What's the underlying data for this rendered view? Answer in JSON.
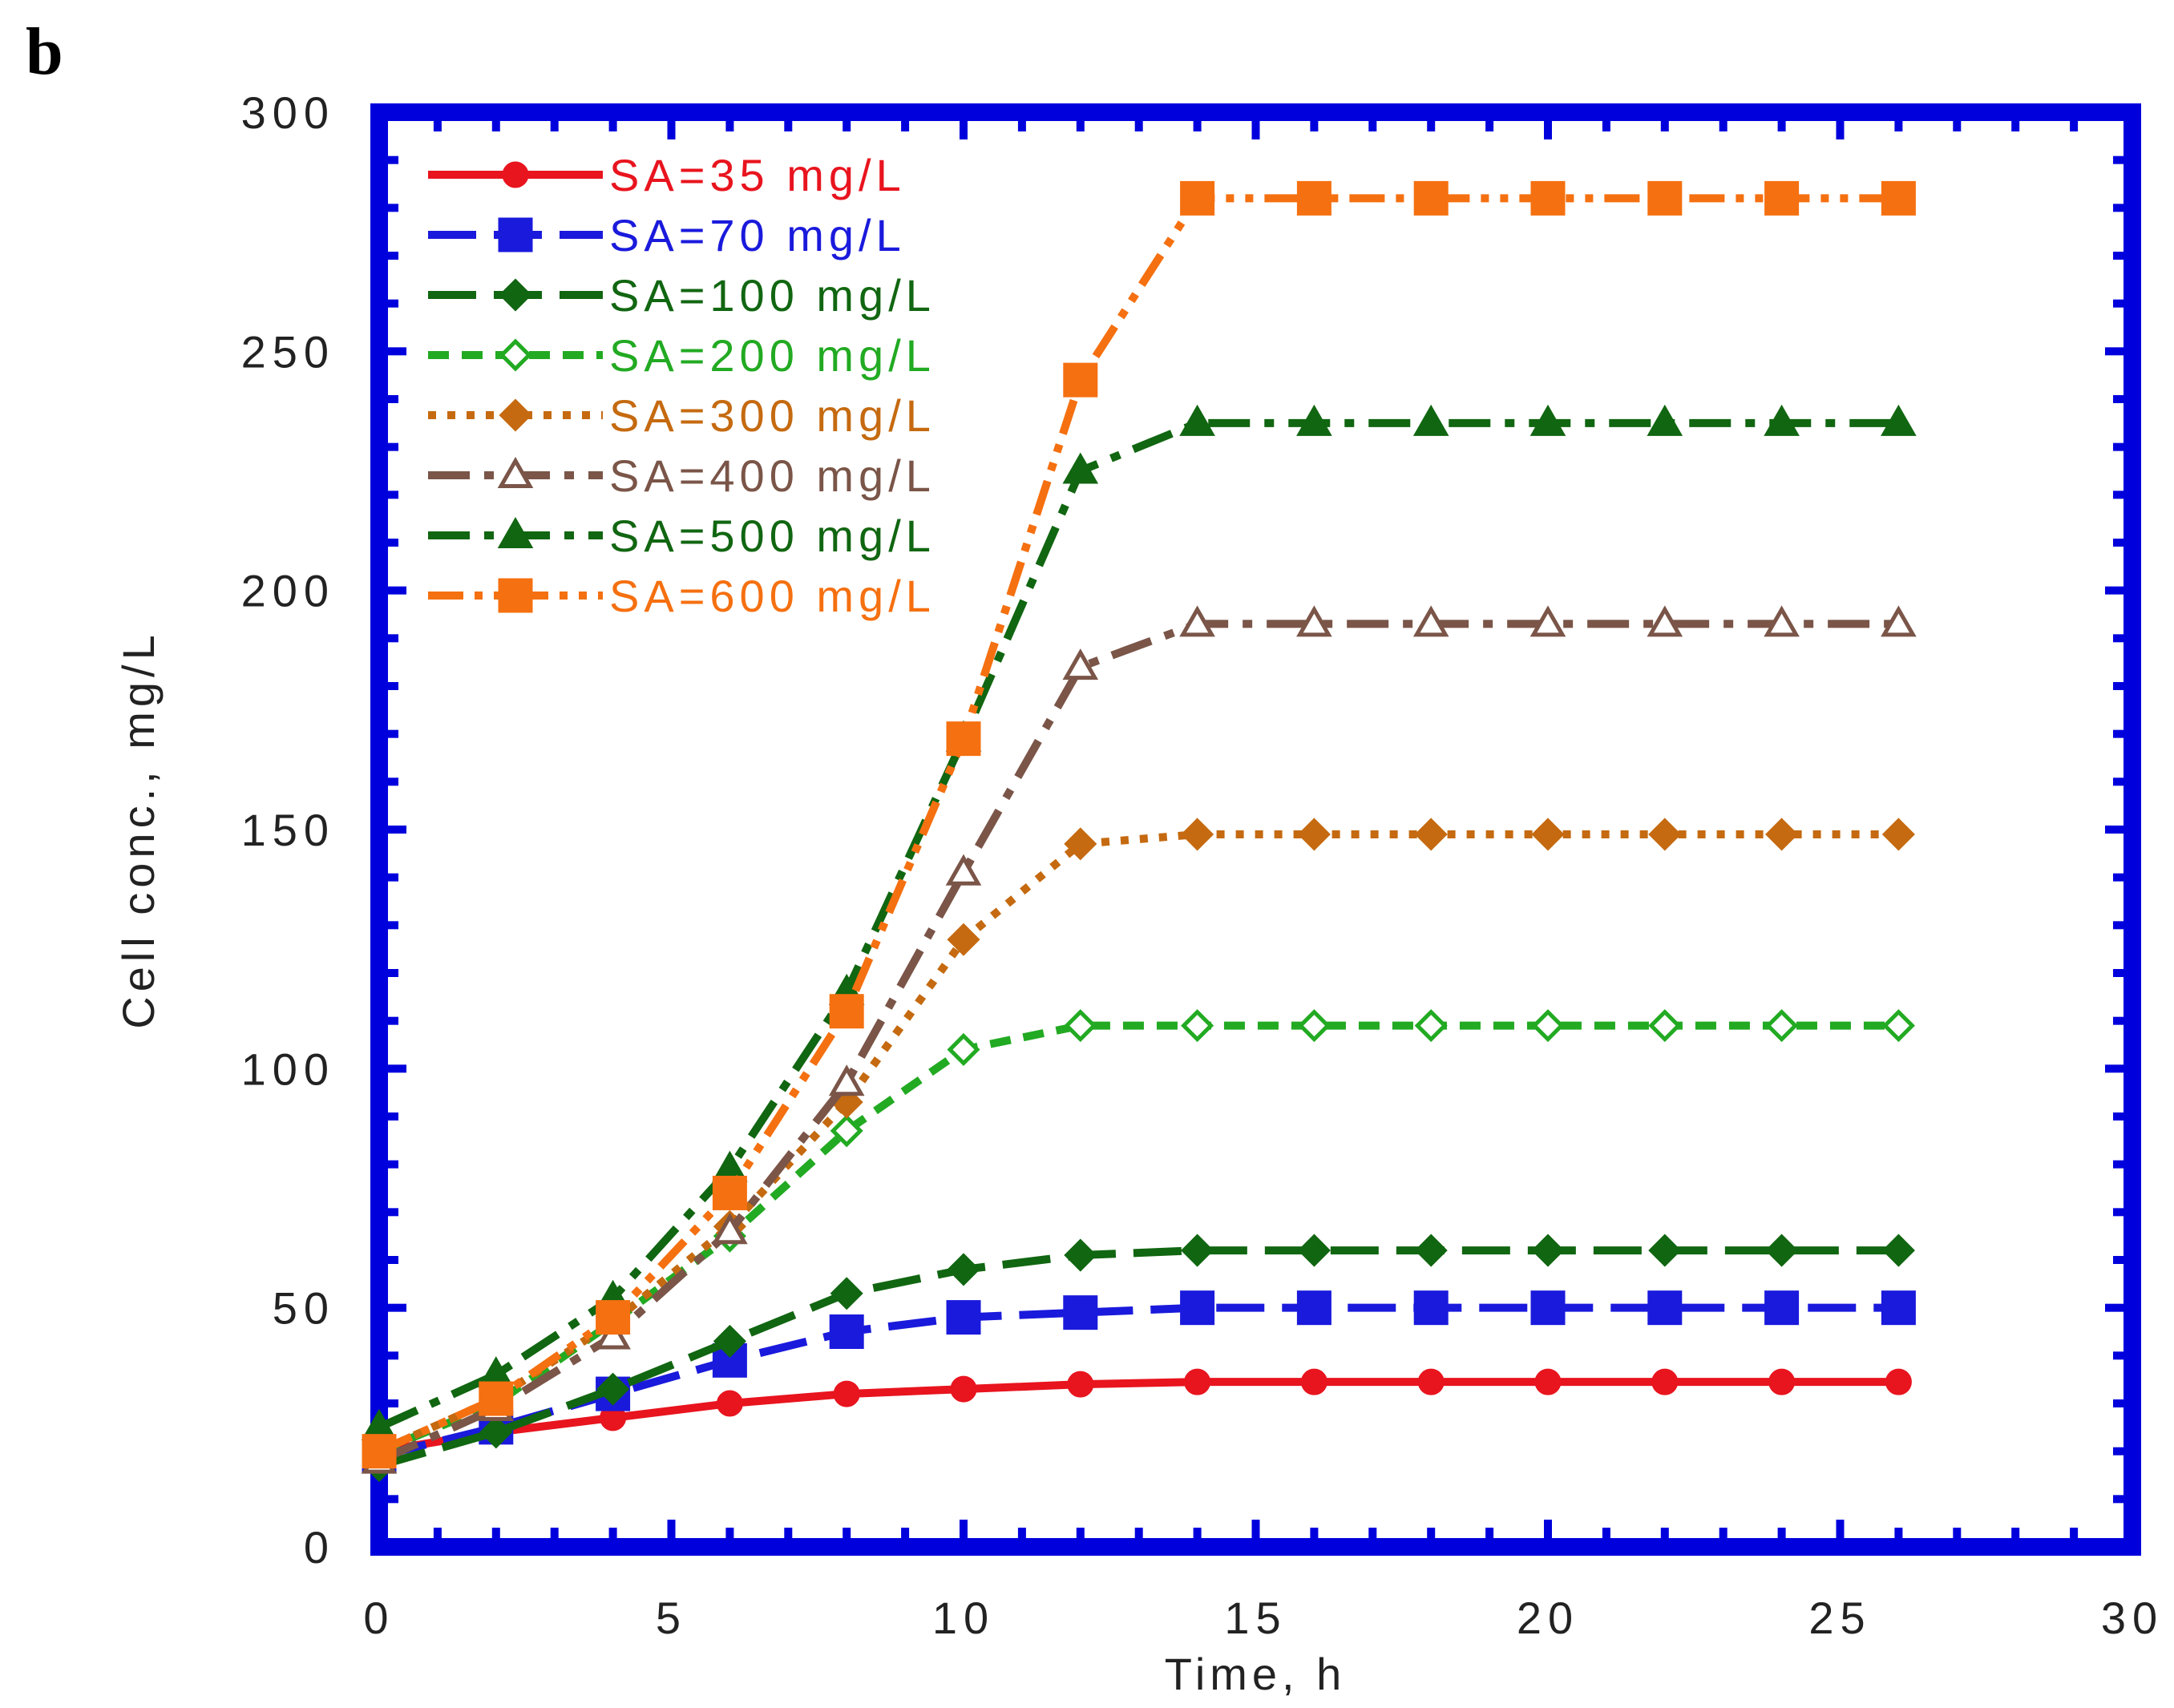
{
  "panel_label": "b",
  "chart_data": {
    "type": "line",
    "title": "",
    "xlabel": "Time, h",
    "ylabel": "Cell conc., mg/L",
    "xlim": [
      0,
      30
    ],
    "ylim": [
      0,
      300
    ],
    "xticks": [
      0,
      5,
      10,
      15,
      20,
      25,
      30
    ],
    "yticks": [
      0,
      50,
      100,
      150,
      200,
      250,
      300
    ],
    "x": [
      0,
      2,
      4,
      6,
      8,
      10,
      12,
      14,
      16,
      18,
      20,
      22,
      24,
      26
    ],
    "legend_position": "top-left",
    "frame_color": "#0000dd",
    "series": [
      {
        "name": "SA=35 mg/L",
        "color": "#e8141e",
        "marker": "circle",
        "fill": true,
        "dash": "solid",
        "values": [
          20,
          24,
          27,
          30,
          32,
          33,
          34,
          34.5,
          34.5,
          34.5,
          34.5,
          34.5,
          34.5,
          34.5
        ]
      },
      {
        "name": "SA=70 mg/L",
        "color": "#1a1adc",
        "marker": "square",
        "fill": true,
        "dash": "longdash",
        "values": [
          19,
          25,
          32,
          39,
          45,
          48,
          49,
          50,
          50,
          50,
          50,
          50,
          50,
          50
        ]
      },
      {
        "name": "SA=100 mg/L",
        "color": "#116611",
        "marker": "diamond",
        "fill": true,
        "dash": "longdash",
        "values": [
          17,
          24,
          33,
          43,
          53,
          58,
          61,
          62,
          62,
          62,
          62,
          62,
          62,
          62
        ]
      },
      {
        "name": "SA=200 mg/L",
        "color": "#22aa22",
        "marker": "diamond",
        "fill": false,
        "dash": "dashed",
        "values": [
          20,
          30,
          47,
          65,
          87,
          104,
          109,
          109,
          109,
          109,
          109,
          109,
          109,
          109
        ]
      },
      {
        "name": "SA=300 mg/L",
        "color": "#c56a10",
        "marker": "diamond",
        "fill": true,
        "dash": "dotted",
        "values": [
          20,
          31,
          47,
          67,
          93,
          127,
          147,
          149,
          149,
          149,
          149,
          149,
          149,
          149
        ]
      },
      {
        "name": "SA=400 mg/L",
        "color": "#7a5548",
        "marker": "triangle",
        "fill": false,
        "dash": "dashdot",
        "values": [
          18,
          29,
          44,
          66,
          97,
          141,
          184,
          193,
          193,
          193,
          193,
          193,
          193,
          193
        ]
      },
      {
        "name": "SA=500 mg/L",
        "color": "#116611",
        "marker": "triangle",
        "fill": true,
        "dash": "dashdot",
        "values": [
          25,
          36,
          52,
          79,
          116,
          169,
          225,
          235,
          235,
          235,
          235,
          235,
          235,
          235
        ]
      },
      {
        "name": "SA=600 mg/L",
        "color": "#f57010",
        "marker": "square",
        "fill": true,
        "dash": "dashdotdot",
        "values": [
          20,
          31,
          48,
          74,
          112,
          169,
          244,
          282,
          282,
          282,
          282,
          282,
          282,
          282
        ]
      }
    ]
  }
}
